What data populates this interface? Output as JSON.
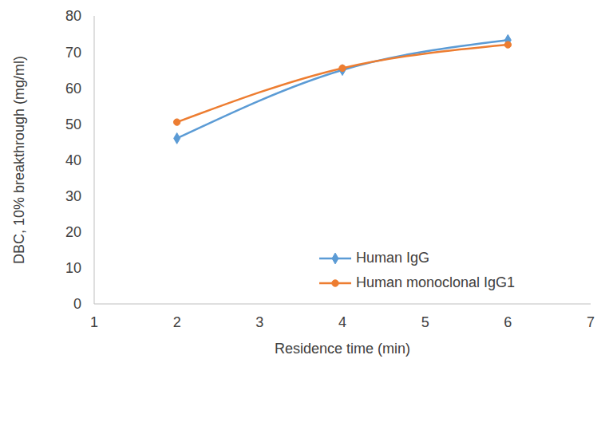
{
  "chart_data": {
    "type": "line",
    "x_label": "Residence time (min)",
    "y_label": "DBC, 10% breakthrough (mg/ml)",
    "x": [
      2,
      4,
      6
    ],
    "series": [
      {
        "name": "Human IgG",
        "color": "#5b9bd5",
        "marker": "diamond",
        "line_style": "smooth",
        "values": [
          46,
          65,
          73.3
        ]
      },
      {
        "name": "Human monoclonal IgG1",
        "color": "#ed7d31",
        "marker": "circle",
        "line_style": "smooth",
        "values": [
          50.5,
          65.5,
          72
        ]
      }
    ],
    "xlim": [
      1,
      7
    ],
    "xticks": [
      1,
      2,
      3,
      4,
      5,
      6,
      7
    ],
    "ylim": [
      0,
      80
    ],
    "yticks": [
      0,
      10,
      20,
      30,
      40,
      50,
      60,
      70,
      80
    ],
    "grid": false,
    "legend": "lower right"
  }
}
